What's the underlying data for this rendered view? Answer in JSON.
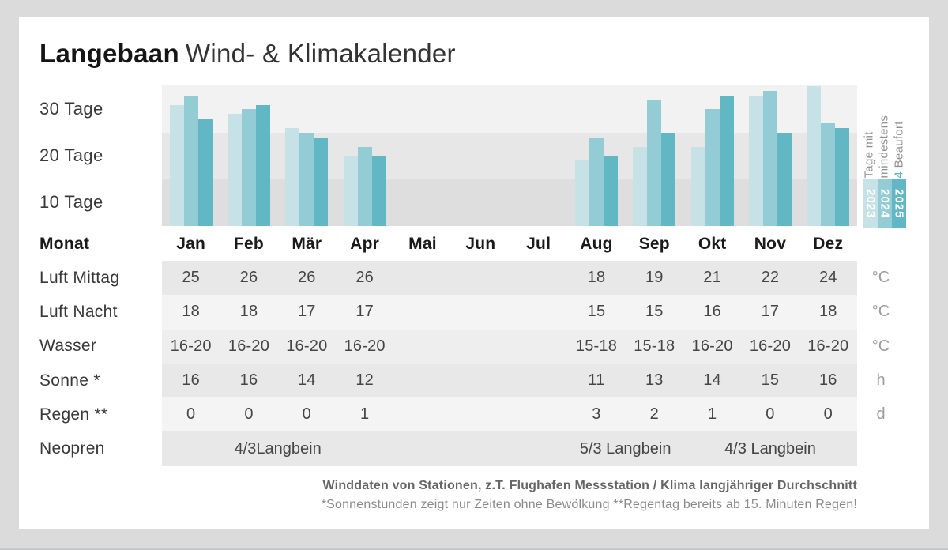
{
  "title": {
    "brand": "Langebaan",
    "rest": "Wind- & Klimakalender"
  },
  "chart_data": {
    "type": "bar",
    "title": "Tage mit mindestens 4 Beaufort",
    "categories": [
      "Jan",
      "Feb",
      "Mär",
      "Apr",
      "Mai",
      "Jun",
      "Jul",
      "Aug",
      "Sep",
      "Okt",
      "Nov",
      "Dez"
    ],
    "series": [
      {
        "name": "2023",
        "color": "#c6e2e7",
        "values": [
          26,
          24,
          21,
          15,
          null,
          null,
          null,
          14,
          17,
          17,
          28,
          30
        ]
      },
      {
        "name": "2024",
        "color": "#93ccd5",
        "values": [
          28,
          25,
          20,
          17,
          null,
          null,
          null,
          19,
          27,
          25,
          29,
          22
        ]
      },
      {
        "name": "2025",
        "color": "#62b7c4",
        "values": [
          23,
          26,
          19,
          15,
          null,
          null,
          null,
          15,
          20,
          28,
          20,
          21
        ]
      }
    ],
    "ylabel": "Tage mit mindestens 4 Beaufort",
    "y_ticks": [
      "30 Tage",
      "20 Tage",
      "10 Tage"
    ],
    "ylim": [
      0,
      30
    ],
    "grid": "banded-rows",
    "legend_position": "right"
  },
  "legend": {
    "line1": "Tage mit",
    "line2": "mindestens",
    "line3_accent": "4",
    "line3_rest": " Beaufort",
    "years": [
      "2023",
      "2024",
      "2025"
    ]
  },
  "table": {
    "month_label": "Monat",
    "months": [
      "Jan",
      "Feb",
      "Mär",
      "Apr",
      "Mai",
      "Jun",
      "Jul",
      "Aug",
      "Sep",
      "Okt",
      "Nov",
      "Dez"
    ],
    "rows": [
      {
        "label": "Luft Mittag",
        "unit": "°C",
        "values": [
          "25",
          "26",
          "26",
          "26",
          "",
          "",
          "",
          "18",
          "19",
          "21",
          "22",
          "24"
        ]
      },
      {
        "label": "Luft Nacht",
        "unit": "°C",
        "values": [
          "18",
          "18",
          "17",
          "17",
          "",
          "",
          "",
          "15",
          "15",
          "16",
          "17",
          "18"
        ]
      },
      {
        "label": "Wasser",
        "unit": "°C",
        "values": [
          "16-20",
          "16-20",
          "16-20",
          "16-20",
          "",
          "",
          "",
          "15-18",
          "15-18",
          "16-20",
          "16-20",
          "16-20"
        ]
      },
      {
        "label": "Sonne *",
        "unit": "h",
        "values": [
          "16",
          "16",
          "14",
          "12",
          "",
          "",
          "",
          "11",
          "13",
          "14",
          "15",
          "16"
        ]
      },
      {
        "label": "Regen **",
        "unit": "d",
        "values": [
          "0",
          "0",
          "0",
          "1",
          "",
          "",
          "",
          "3",
          "2",
          "1",
          "0",
          "0"
        ]
      }
    ],
    "neopren": {
      "label": "Neopren",
      "unit": "",
      "spans": [
        {
          "text": "4/3Langbein",
          "start": 0,
          "cols": 4
        },
        {
          "text": "5/3 Langbein",
          "start": 7,
          "cols": 2
        },
        {
          "text": "4/3 Langbein",
          "start": 9,
          "cols": 3
        }
      ]
    }
  },
  "footer": {
    "line1": "Winddaten von Stationen, z.T. Flughafen Messstation / Klima langjähriger Durchschnitt",
    "line2": "*Sonnenstunden zeigt nur Zeiten ohne Bewölkung  **Regentag bereits ab 15. Minuten Regen!"
  },
  "colors": {
    "accent_2023": "#c6e2e7",
    "accent_2024": "#93ccd5",
    "accent_2025": "#62b7c4",
    "beaufort_accent": "#5fb6c3"
  }
}
